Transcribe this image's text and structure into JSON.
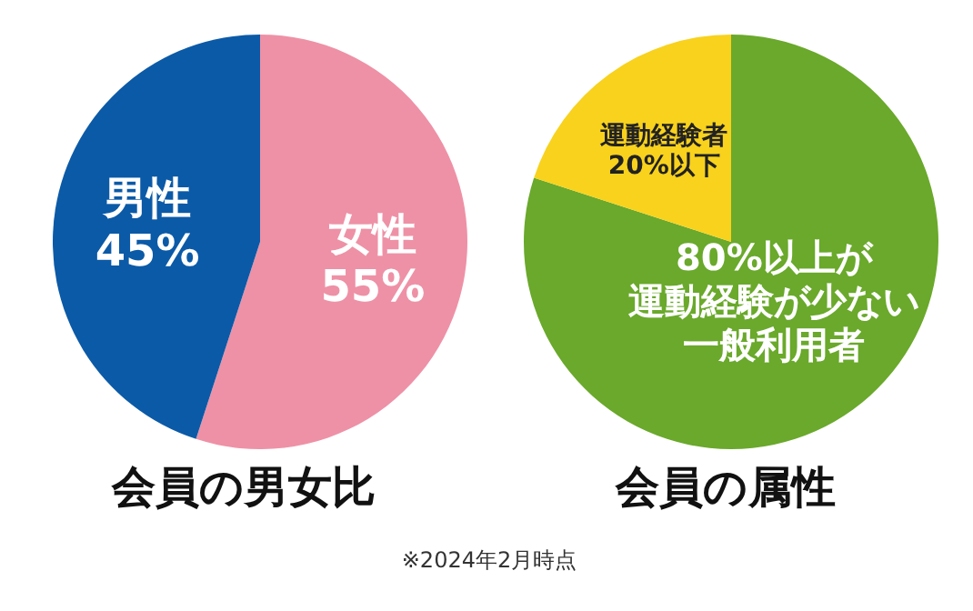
{
  "chart_data": [
    {
      "type": "pie",
      "title": "会員の男女比",
      "categories": [
        "女性",
        "男性"
      ],
      "values": [
        55,
        45
      ],
      "colors": [
        "#ee91a6",
        "#0b5aa7"
      ],
      "value_labels": [
        "55%",
        "45%"
      ],
      "legend": false
    },
    {
      "type": "pie",
      "title": "会員の属性",
      "categories": [
        "80%以上が運動経験が少ない一般利用者",
        "運動経験者20%以下"
      ],
      "values": [
        80,
        20
      ],
      "colors": [
        "#6aa92b",
        "#f8d21c"
      ],
      "legend": false,
      "annotations": [
        "※2024年2月時点"
      ]
    }
  ]
}
